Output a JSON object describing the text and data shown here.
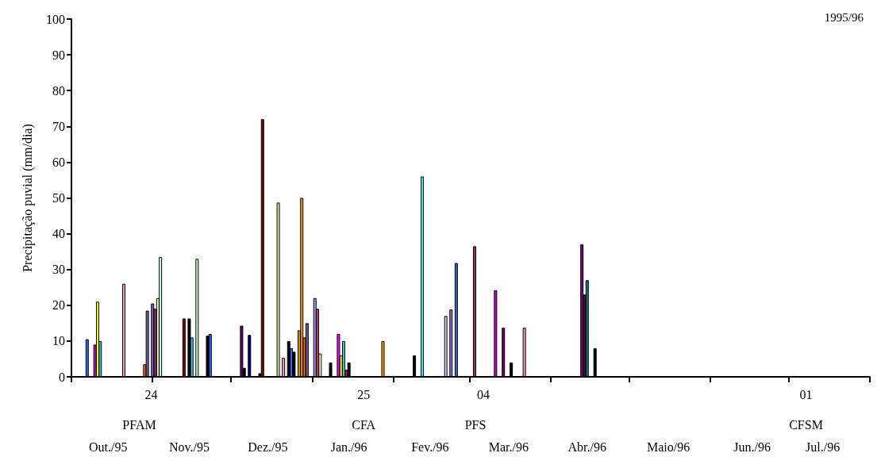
{
  "chart_data": {
    "type": "bar",
    "ylabel": "Precipitação puvial (mm/dia)",
    "xlim": [
      "1995-10-01",
      "1996-08-01"
    ],
    "xticks": [
      {
        "value": "1995-10-01",
        "label": null
      },
      {
        "value": "1995-11-01",
        "label": null
      },
      {
        "value": "1995-12-01",
        "label": null
      },
      {
        "value": "1996-01-01",
        "label": null
      },
      {
        "value": "1996-02-01",
        "label": null
      },
      {
        "value": "1996-03-01",
        "label": null
      },
      {
        "value": "1996-04-01",
        "label": null
      },
      {
        "value": "1996-05-01",
        "label": null
      },
      {
        "value": "1996-06-01",
        "label": null
      },
      {
        "value": "1996-07-01",
        "label": null
      },
      {
        "value": "1996-08-01",
        "label": null
      },
      {
        "value": "1995-10-15",
        "label": "Out./95"
      },
      {
        "value": "1995-11-15",
        "label": "Nov./95"
      },
      {
        "value": "1995-12-15",
        "label": "Dez./95"
      },
      {
        "value": "1996-01-15",
        "label": "Jan./96"
      },
      {
        "value": "1996-02-15",
        "label": "Fev./96"
      },
      {
        "value": "1996-03-16",
        "label": "Mar./96"
      },
      {
        "value": "1996-04-15",
        "label": "Abr./96"
      },
      {
        "value": "1996-05-16",
        "label": "Maio/96"
      },
      {
        "value": "1996-06-17",
        "label": "Jun./96"
      },
      {
        "value": "1996-07-14",
        "label": "Jul./96"
      }
    ],
    "ylim": [
      0,
      100
    ],
    "yticks": [
      0,
      10,
      20,
      30,
      40,
      50,
      60,
      70,
      80,
      90,
      100
    ],
    "x": [
      "1995-10-07",
      "1995-10-10",
      "1995-10-11",
      "1995-10-12",
      "1995-10-21",
      "1995-10-29",
      "1995-10-30",
      "1995-11-01",
      "1995-11-02",
      "1995-11-03",
      "1995-11-04",
      "1995-11-13",
      "1995-11-15",
      "1995-11-16",
      "1995-11-18",
      "1995-11-22",
      "1995-11-23",
      "1995-12-05",
      "1995-12-06",
      "1995-12-08",
      "1995-12-12",
      "1995-12-13",
      "1995-12-19",
      "1995-12-21",
      "1995-12-23",
      "1995-12-24",
      "1995-12-25",
      "1995-12-27",
      "1995-12-28",
      "1995-12-29",
      "1995-12-30",
      "1996-01-02",
      "1996-01-03",
      "1996-01-04",
      "1996-01-08",
      "1996-01-11",
      "1996-01-12",
      "1996-01-13",
      "1996-01-14",
      "1996-01-15",
      "1996-01-28",
      "1996-02-09",
      "1996-02-12",
      "1996-02-21",
      "1996-02-23",
      "1996-02-25",
      "1996-03-03",
      "1996-03-11",
      "1996-03-14",
      "1996-03-17",
      "1996-03-22",
      "1996-04-13",
      "1996-04-14",
      "1996-04-15",
      "1996-04-18"
    ],
    "values": [
      10.5,
      9,
      21,
      10,
      26,
      3.5,
      18.5,
      20.5,
      19,
      22,
      33.5,
      16.3,
      16.3,
      11,
      33,
      11.5,
      12,
      14.3,
      2.5,
      11.7,
      1,
      72,
      48.7,
      5.3,
      10,
      8,
      7,
      13,
      50,
      11,
      15,
      22,
      19,
      6.5,
      4,
      12,
      6,
      10,
      2,
      4,
      10,
      6,
      56,
      17,
      18.8,
      31.8,
      36.5,
      24.2,
      13.7,
      4,
      13.7,
      37,
      23,
      27,
      8
    ],
    "colors": [
      "#3366ff",
      "#cc00cc",
      "#ffff00",
      "#33cccc",
      "#ff99cc",
      "#ff6600",
      "#666699",
      "#6666cc",
      "#993366",
      "#ffffcc",
      "#ccffff",
      "#800000",
      "#000000",
      "#33ccff",
      "#ccffcc",
      "#000000",
      "#3366ff",
      "#660066",
      "#000000",
      "#000080",
      "#000000",
      "#800000",
      "#e6e699",
      "#ff99cc",
      "#000000",
      "#3366ff",
      "#000000",
      "#cc9900",
      "#ff9900",
      "#ff6600",
      "#666699",
      "#9999ff",
      "#cc3366",
      "#ffffcc",
      "#000000",
      "#ff00ff",
      "#ffff00",
      "#33cccc",
      "#cc0066",
      "#000000",
      "#ff9900",
      "#000000",
      "#00ffff",
      "#ccccff",
      "#9966cc",
      "#3366cc",
      "#993366",
      "#cc00cc",
      "#660066",
      "#000000",
      "#ff99cc",
      "#800080",
      "#660033",
      "#008080",
      "#000000"
    ],
    "annotations": [
      "1995/96",
      "24",
      "PFAM",
      "25",
      "CFA",
      "04",
      "PFS",
      "01",
      "CFSM"
    ]
  }
}
